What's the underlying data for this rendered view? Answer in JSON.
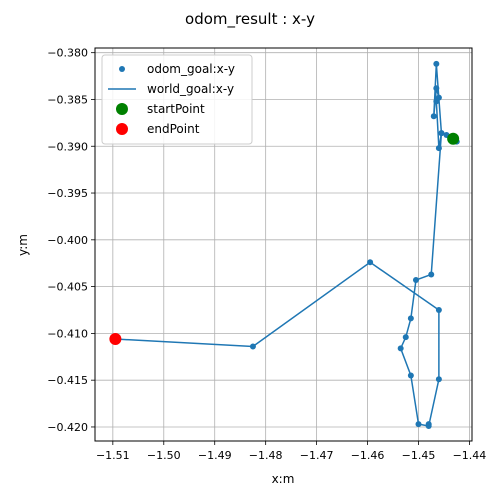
{
  "chart_data": {
    "type": "scatter",
    "title": "odom_result : x-y",
    "xlabel": "x:m",
    "ylabel": "y:m",
    "xlim": [
      -1.5135,
      -1.4395
    ],
    "ylim": [
      -0.4215,
      -0.3795
    ],
    "grid": true,
    "legend_position": "upper-left",
    "xticks": [
      -1.51,
      -1.5,
      -1.49,
      -1.48,
      -1.47,
      -1.46,
      -1.45,
      -1.44
    ],
    "xtick_labels": [
      "−1.51",
      "−1.50",
      "−1.49",
      "−1.48",
      "−1.47",
      "−1.46",
      "−1.45",
      "−1.44"
    ],
    "yticks": [
      -0.38,
      -0.385,
      -0.39,
      -0.395,
      -0.4,
      -0.405,
      -0.41,
      -0.415,
      -0.42
    ],
    "ytick_labels": [
      "−0.380",
      "−0.385",
      "−0.390",
      "−0.395",
      "−0.400",
      "−0.405",
      "−0.410",
      "−0.415",
      "−0.420"
    ],
    "series": [
      {
        "name": "odom_goal:x-y",
        "kind": "scatter",
        "color": "#1f77b4",
        "x": [
          -1.4425,
          -1.4435,
          -1.4445,
          -1.4455,
          -1.446,
          -1.4465,
          -1.446,
          -1.4465,
          -1.447,
          -1.4465,
          -1.4455,
          -1.4475,
          -1.4505,
          -1.4515,
          -1.4525,
          -1.4535,
          -1.4515,
          -1.45,
          -1.448,
          -1.448,
          -1.446,
          -1.446,
          -1.4595,
          -1.4825,
          -1.5095
        ],
        "y": [
          -0.3895,
          -0.3892,
          -0.3888,
          -0.3886,
          -0.3902,
          -0.3852,
          -0.3848,
          -0.3838,
          -0.3868,
          -0.3812,
          -0.3886,
          -0.4037,
          -0.4043,
          -0.4084,
          -0.4104,
          -0.4116,
          -0.4145,
          -0.4197,
          -0.4197,
          -0.4199,
          -0.4149,
          -0.4075,
          -0.4024,
          -0.4114,
          -0.4106
        ]
      },
      {
        "name": "world_goal:x-y",
        "kind": "line",
        "color": "#1f77b4",
        "x": [
          -1.4425,
          -1.4435,
          -1.4455,
          -1.446,
          -1.4465,
          -1.446,
          -1.4465,
          -1.447,
          -1.4465,
          -1.4455,
          -1.4475,
          -1.4505,
          -1.4515,
          -1.4525,
          -1.4535,
          -1.4515,
          -1.45,
          -1.448,
          -1.446,
          -1.446,
          -1.4595,
          -1.4825,
          -1.5095
        ],
        "y": [
          -0.3895,
          -0.3892,
          -0.3886,
          -0.3902,
          -0.3852,
          -0.3848,
          -0.3838,
          -0.3868,
          -0.3812,
          -0.3886,
          -0.4037,
          -0.4043,
          -0.4084,
          -0.4104,
          -0.4116,
          -0.4145,
          -0.4197,
          -0.4199,
          -0.4149,
          -0.4075,
          -0.4024,
          -0.4114,
          -0.4106
        ]
      },
      {
        "name": "startPoint",
        "kind": "scatter",
        "color": "#008000",
        "x": [
          -1.4432
        ],
        "y": [
          -0.3892
        ]
      },
      {
        "name": "endPoint",
        "kind": "scatter",
        "color": "#ff0000",
        "x": [
          -1.5095
        ],
        "y": [
          -0.4106
        ]
      }
    ]
  }
}
